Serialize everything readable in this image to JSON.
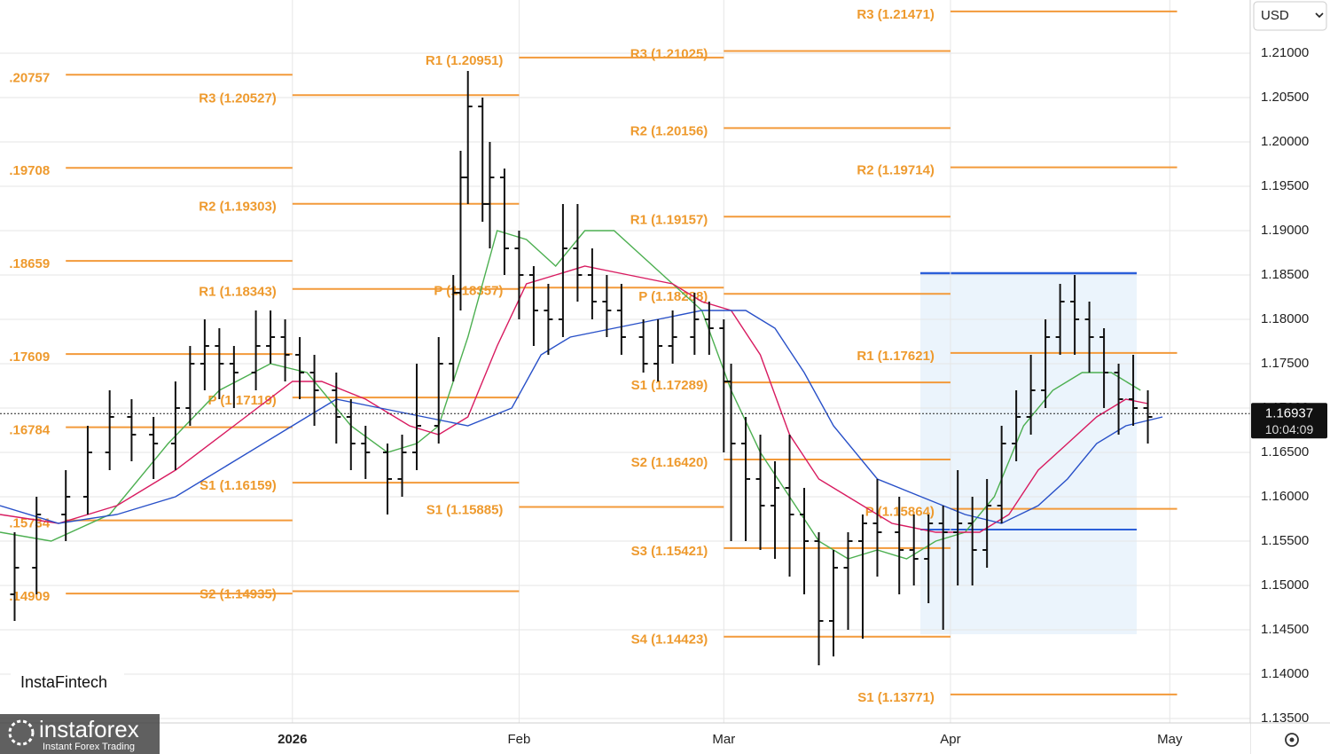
{
  "chart_data": {
    "type": "ohlc",
    "currency": "USD",
    "xlim": [
      -40,
      131
    ],
    "ylim": [
      1.1345,
      1.216
    ],
    "xticks": [
      {
        "value": 0,
        "label": "2026"
      },
      {
        "value": 31,
        "label": "Feb"
      },
      {
        "value": 59,
        "label": "Mar"
      },
      {
        "value": 90,
        "label": "Apr"
      },
      {
        "value": 120,
        "label": "May"
      }
    ],
    "yticks": [
      {
        "value": 1.135,
        "label": "1.13500"
      },
      {
        "value": 1.14,
        "label": "1.14000"
      },
      {
        "value": 1.145,
        "label": "1.14500"
      },
      {
        "value": 1.15,
        "label": "1.15000"
      },
      {
        "value": 1.155,
        "label": "1.15500"
      },
      {
        "value": 1.16,
        "label": "1.16000"
      },
      {
        "value": 1.165,
        "label": "1.16500"
      },
      {
        "value": 1.17,
        "label": "1.17000"
      },
      {
        "value": 1.175,
        "label": "1.17500"
      },
      {
        "value": 1.18,
        "label": "1.18000"
      },
      {
        "value": 1.185,
        "label": "1.18500"
      },
      {
        "value": 1.19,
        "label": "1.19000"
      },
      {
        "value": 1.195,
        "label": "1.19500"
      },
      {
        "value": 1.2,
        "label": "1.20000"
      },
      {
        "value": 1.205,
        "label": "1.20500"
      },
      {
        "value": 1.21,
        "label": "1.21000"
      }
    ],
    "grid": true,
    "bar_color": "#111111",
    "last_price": 1.16937,
    "countdown": "10:04:09",
    "pivot_color": "#f39a3a",
    "pivots": [
      {
        "from": -31,
        "to": 0,
        "levels": [
          {
            "label": ".20757",
            "value": 1.20757
          },
          {
            "label": ".19708",
            "value": 1.19708
          },
          {
            "label": ".18659",
            "value": 1.18659
          },
          {
            "label": ".17609",
            "value": 1.17609
          },
          {
            "label": ".16784",
            "value": 1.16784
          },
          {
            "label": ".15734",
            "value": 1.15734
          },
          {
            "label": ".14909",
            "value": 1.14909
          }
        ]
      },
      {
        "from": 0,
        "to": 31,
        "levels": [
          {
            "label": "R3 (1.20527)",
            "value": 1.20527
          },
          {
            "label": "R2 (1.19303)",
            "value": 1.19303
          },
          {
            "label": "R1 (1.18343)",
            "value": 1.18343
          },
          {
            "label": "P (1.17119)",
            "value": 1.17119
          },
          {
            "label": "S1 (1.16159)",
            "value": 1.16159
          },
          {
            "label": "S2 (1.14935)",
            "value": 1.14935
          }
        ]
      },
      {
        "from": 31,
        "to": 59,
        "levels": [
          {
            "label": "R1 (1.20951)",
            "value": 1.20951
          },
          {
            "label": "P (1.18357)",
            "value": 1.18357
          },
          {
            "label": "S1 (1.15885)",
            "value": 1.15885
          }
        ]
      },
      {
        "from": 59,
        "to": 90,
        "levels": [
          {
            "label": "R3 (1.21025)",
            "value": 1.21025
          },
          {
            "label": "R2 (1.20156)",
            "value": 1.20156
          },
          {
            "label": "R1 (1.19157)",
            "value": 1.19157
          },
          {
            "label": "P (1.18288)",
            "value": 1.18288
          },
          {
            "label": "S1 (1.17289)",
            "value": 1.17289
          },
          {
            "label": "S2 (1.16420)",
            "value": 1.1642
          },
          {
            "label": "S3 (1.15421)",
            "value": 1.15421
          },
          {
            "label": "S4 (1.14423)",
            "value": 1.14423
          }
        ]
      },
      {
        "from": 90,
        "to": 121,
        "levels": [
          {
            "label": "R3 (1.21471)",
            "value": 1.21471
          },
          {
            "label": "R2 (1.19714)",
            "value": 1.19714
          },
          {
            "label": "R1 (1.17621)",
            "value": 1.17621
          },
          {
            "label": "P (1.15864)",
            "value": 1.15864
          },
          {
            "label": "S1 (1.13771)",
            "value": 1.13771
          }
        ]
      }
    ],
    "x": [
      -38,
      -35,
      -31,
      -28,
      -25,
      -22,
      -19,
      -16,
      -14,
      -12,
      -10,
      -8,
      -5,
      -3,
      -1,
      1,
      3,
      6,
      8,
      10,
      13,
      15,
      17,
      20,
      22,
      23,
      24,
      26,
      27,
      29,
      31,
      33,
      35,
      37,
      39,
      41,
      43,
      45,
      48,
      50,
      52,
      55,
      57,
      59,
      60,
      62,
      64,
      66,
      68,
      70,
      72,
      74,
      76,
      78,
      80,
      83,
      85,
      87,
      89,
      91,
      93,
      95,
      97,
      99,
      101,
      103,
      105,
      107,
      109,
      111,
      113,
      115,
      117
    ],
    "open": [
      1.149,
      1.152,
      1.158,
      1.16,
      1.165,
      1.169,
      1.167,
      1.166,
      1.17,
      1.175,
      1.177,
      1.175,
      1.174,
      1.177,
      1.178,
      1.176,
      1.174,
      1.172,
      1.169,
      1.166,
      1.165,
      1.162,
      1.165,
      1.168,
      1.175,
      1.183,
      1.196,
      1.204,
      1.193,
      1.196,
      1.188,
      1.185,
      1.181,
      1.18,
      1.188,
      1.185,
      1.182,
      1.181,
      1.178,
      1.175,
      1.177,
      1.178,
      1.18,
      1.179,
      1.173,
      1.166,
      1.162,
      1.159,
      1.161,
      1.158,
      1.155,
      1.146,
      1.152,
      1.155,
      1.157,
      1.156,
      1.154,
      1.153,
      1.157,
      1.156,
      1.157,
      1.154,
      1.159,
      1.166,
      1.169,
      1.172,
      1.178,
      1.182,
      1.18,
      1.178,
      1.174,
      1.171,
      1.17
    ],
    "high": [
      1.156,
      1.16,
      1.163,
      1.168,
      1.172,
      1.171,
      1.169,
      1.173,
      1.177,
      1.18,
      1.179,
      1.177,
      1.181,
      1.181,
      1.18,
      1.178,
      1.176,
      1.174,
      1.171,
      1.168,
      1.166,
      1.167,
      1.175,
      1.178,
      1.185,
      1.199,
      1.208,
      1.205,
      1.2,
      1.197,
      1.19,
      1.186,
      1.184,
      1.193,
      1.193,
      1.188,
      1.185,
      1.184,
      1.18,
      1.18,
      1.181,
      1.183,
      1.182,
      1.18,
      1.175,
      1.169,
      1.167,
      1.164,
      1.167,
      1.161,
      1.156,
      1.154,
      1.156,
      1.158,
      1.162,
      1.16,
      1.158,
      1.158,
      1.159,
      1.163,
      1.16,
      1.162,
      1.168,
      1.172,
      1.176,
      1.18,
      1.184,
      1.185,
      1.182,
      1.179,
      1.175,
      1.176,
      1.172
    ],
    "low": [
      1.146,
      1.149,
      1.155,
      1.158,
      1.163,
      1.164,
      1.162,
      1.163,
      1.168,
      1.172,
      1.171,
      1.17,
      1.172,
      1.175,
      1.173,
      1.171,
      1.168,
      1.166,
      1.163,
      1.162,
      1.158,
      1.16,
      1.163,
      1.166,
      1.173,
      1.181,
      1.193,
      1.191,
      1.188,
      1.185,
      1.18,
      1.177,
      1.176,
      1.178,
      1.182,
      1.18,
      1.178,
      1.176,
      1.174,
      1.173,
      1.175,
      1.176,
      1.176,
      1.165,
      1.155,
      1.155,
      1.154,
      1.153,
      1.151,
      1.149,
      1.141,
      1.142,
      1.145,
      1.144,
      1.151,
      1.149,
      1.15,
      1.148,
      1.145,
      1.15,
      1.15,
      1.152,
      1.157,
      1.164,
      1.167,
      1.17,
      1.176,
      1.176,
      1.174,
      1.17,
      1.167,
      1.168,
      1.166
    ],
    "close": [
      1.152,
      1.158,
      1.16,
      1.165,
      1.169,
      1.167,
      1.166,
      1.17,
      1.175,
      1.177,
      1.175,
      1.174,
      1.177,
      1.178,
      1.176,
      1.174,
      1.172,
      1.169,
      1.166,
      1.165,
      1.162,
      1.165,
      1.168,
      1.175,
      1.183,
      1.196,
      1.204,
      1.193,
      1.196,
      1.188,
      1.185,
      1.181,
      1.18,
      1.188,
      1.185,
      1.182,
      1.181,
      1.178,
      1.175,
      1.177,
      1.178,
      1.18,
      1.179,
      1.173,
      1.166,
      1.162,
      1.159,
      1.161,
      1.158,
      1.155,
      1.146,
      1.152,
      1.155,
      1.157,
      1.156,
      1.154,
      1.153,
      1.157,
      1.156,
      1.157,
      1.154,
      1.159,
      1.166,
      1.169,
      1.172,
      1.178,
      1.182,
      1.18,
      1.178,
      1.174,
      1.171,
      1.17,
      1.169
    ],
    "series": [
      {
        "color": "#4caf50",
        "x": [
          -40,
          -33,
          -25,
          -17,
          -10,
          -3,
          2,
          8,
          13,
          17,
          20,
          24,
          28,
          32,
          36,
          40,
          44,
          48,
          52,
          56,
          60,
          64,
          68,
          72,
          76,
          80,
          84,
          88,
          92,
          96,
          100,
          104,
          108,
          112,
          116
        ],
        "values": [
          1.156,
          1.155,
          1.158,
          1.166,
          1.172,
          1.175,
          1.174,
          1.168,
          1.165,
          1.166,
          1.168,
          1.178,
          1.19,
          1.189,
          1.186,
          1.19,
          1.19,
          1.187,
          1.184,
          1.181,
          1.172,
          1.165,
          1.16,
          1.155,
          1.153,
          1.154,
          1.153,
          1.155,
          1.156,
          1.16,
          1.168,
          1.172,
          1.174,
          1.174,
          1.172
        ]
      },
      {
        "color": "#d81b60",
        "x": [
          -40,
          -32,
          -24,
          -16,
          -8,
          0,
          4,
          10,
          16,
          20,
          24,
          28,
          32,
          36,
          40,
          46,
          52,
          56,
          60,
          64,
          68,
          72,
          76,
          82,
          88,
          94,
          98,
          102,
          106,
          110,
          114,
          117
        ],
        "values": [
          1.158,
          1.157,
          1.159,
          1.163,
          1.168,
          1.173,
          1.173,
          1.171,
          1.168,
          1.167,
          1.169,
          1.177,
          1.184,
          1.185,
          1.186,
          1.185,
          1.184,
          1.182,
          1.181,
          1.176,
          1.167,
          1.162,
          1.16,
          1.157,
          1.156,
          1.156,
          1.158,
          1.163,
          1.166,
          1.169,
          1.171,
          1.1705
        ]
      },
      {
        "color": "#2850c8",
        "x": [
          -40,
          -32,
          -24,
          -16,
          -8,
          0,
          6,
          12,
          18,
          24,
          30,
          34,
          38,
          44,
          50,
          56,
          62,
          66,
          70,
          74,
          80,
          86,
          92,
          97,
          102,
          106,
          110,
          114,
          119
        ],
        "values": [
          1.159,
          1.157,
          1.158,
          1.16,
          1.164,
          1.168,
          1.171,
          1.17,
          1.169,
          1.168,
          1.17,
          1.176,
          1.178,
          1.179,
          1.18,
          1.181,
          1.181,
          1.179,
          1.174,
          1.168,
          1.162,
          1.16,
          1.158,
          1.157,
          1.159,
          1.162,
          1.166,
          1.168,
          1.169
        ]
      }
    ]
  },
  "ui": {
    "brand_small": "InstaFintech",
    "brand_logo": "instaforex",
    "brand_tagline": "Instant Forex Trading"
  }
}
